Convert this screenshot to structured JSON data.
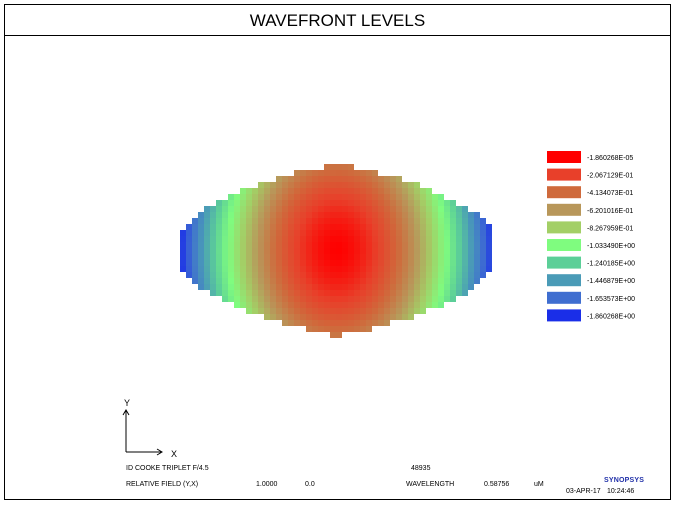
{
  "title": "WAVEFRONT LEVELS",
  "chart_data": {
    "type": "heatmap",
    "title": "WAVEFRONT LEVELS",
    "description_of_field": "Wavefront height map over an elliptical pupil; maximum (near 0) at center, decreasing toward the left and right edges",
    "levels": [
      {
        "value": "-1.860268E-05",
        "color": "#ff0000"
      },
      {
        "value": "-2.067129E-01",
        "color": "#e8402a"
      },
      {
        "value": "-4.134073E-01",
        "color": "#cf6a3c"
      },
      {
        "value": "-6.201016E-01",
        "color": "#b8975a"
      },
      {
        "value": "-8.267959E-01",
        "color": "#a3cf66"
      },
      {
        "value": "-1.033490E+00",
        "color": "#7ffc7f"
      },
      {
        "value": "-1.240185E+00",
        "color": "#5ccf98"
      },
      {
        "value": "-1.446879E+00",
        "color": "#4a9bb7"
      },
      {
        "value": "-1.653573E+00",
        "color": "#3f6ed0"
      },
      {
        "value": "-1.860268E+00",
        "color": "#1a2ee8"
      }
    ],
    "wavefront_min": -1.860268,
    "wavefront_max": -1.860268e-05,
    "axes": {
      "x_label": "X",
      "y_label": "Y"
    }
  },
  "footer": {
    "lens_name": "ID COOKE TRIPLET F/4.5",
    "id_number": "48935",
    "field_label": "RELATIVE FIELD (Y,X)",
    "field_y": "1.0000",
    "field_x": "0.0",
    "wavelength_label": "WAVELENGTH",
    "wavelength_value": "0.58756",
    "wavelength_unit": "uM",
    "logo": "SYNOPSYS",
    "date": "03-APR-17",
    "time": "10:24:46"
  }
}
